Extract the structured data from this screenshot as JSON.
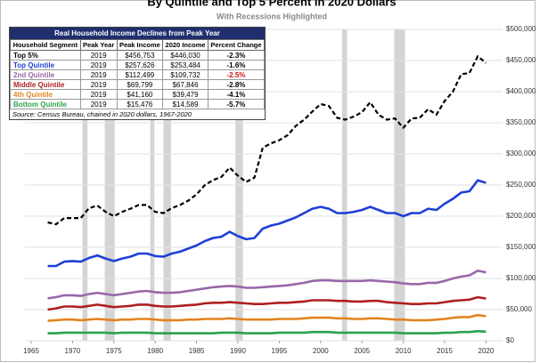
{
  "chart_data": {
    "type": "line",
    "title": "By Quintile and Top 5 Percent in 2020 Dollars",
    "subtitle": "With Recessions Highlighted",
    "x": [
      1967,
      1968,
      1969,
      1970,
      1971,
      1972,
      1973,
      1974,
      1975,
      1976,
      1977,
      1978,
      1979,
      1980,
      1981,
      1982,
      1983,
      1984,
      1985,
      1986,
      1987,
      1988,
      1989,
      1990,
      1991,
      1992,
      1993,
      1994,
      1995,
      1996,
      1997,
      1998,
      1999,
      2000,
      2001,
      2002,
      2003,
      2004,
      2005,
      2006,
      2007,
      2008,
      2009,
      2010,
      2011,
      2012,
      2013,
      2014,
      2015,
      2016,
      2017,
      2018,
      2019,
      2020
    ],
    "series": [
      {
        "name": "Top 5%",
        "color": "#000000",
        "dashed": true,
        "values": [
          190000,
          187000,
          197000,
          197000,
          197000,
          213000,
          217000,
          207000,
          200000,
          207000,
          212000,
          218000,
          218000,
          207000,
          205000,
          213000,
          218000,
          225000,
          235000,
          250000,
          258000,
          263000,
          278000,
          265000,
          255000,
          262000,
          310000,
          317000,
          322000,
          330000,
          345000,
          355000,
          368000,
          380000,
          377000,
          358000,
          355000,
          360000,
          367000,
          383000,
          363000,
          355000,
          357000,
          342000,
          357000,
          358000,
          372000,
          363000,
          385000,
          400000,
          428000,
          430000,
          456753,
          446030
        ]
      },
      {
        "name": "Top Quintile",
        "color": "#1f3fd6",
        "dashed": false,
        "values": [
          120000,
          120000,
          127000,
          128000,
          127000,
          133000,
          137000,
          132000,
          128000,
          132000,
          135000,
          140000,
          140000,
          136000,
          135000,
          140000,
          143000,
          148000,
          153000,
          160000,
          165000,
          167000,
          175000,
          168000,
          163000,
          165000,
          180000,
          185000,
          188000,
          193000,
          198000,
          205000,
          212000,
          215000,
          212000,
          205000,
          205000,
          207000,
          210000,
          215000,
          210000,
          205000,
          205000,
          200000,
          205000,
          205000,
          212000,
          210000,
          220000,
          228000,
          238000,
          240000,
          257626,
          253484
        ]
      },
      {
        "name": "2nd Quintile",
        "color": "#9966aa",
        "dashed": false,
        "values": [
          68000,
          70000,
          73000,
          73000,
          72000,
          75000,
          77000,
          75000,
          73000,
          75000,
          77000,
          79000,
          80000,
          78000,
          77000,
          77000,
          78000,
          80000,
          82000,
          84000,
          86000,
          87000,
          88000,
          87000,
          85000,
          85000,
          86000,
          87000,
          88000,
          89000,
          91000,
          93000,
          96000,
          97000,
          97000,
          96000,
          96000,
          96000,
          96000,
          97000,
          96000,
          95000,
          94000,
          92000,
          91000,
          91000,
          93000,
          93000,
          96000,
          100000,
          103000,
          105000,
          112499,
          109732
        ]
      },
      {
        "name": "Middle Quintile",
        "color": "#b01e1e",
        "dashed": false,
        "values": [
          50000,
          52000,
          55000,
          55000,
          54000,
          56000,
          58000,
          56000,
          54000,
          55000,
          56000,
          58000,
          58000,
          56000,
          55000,
          55000,
          56000,
          57000,
          58000,
          60000,
          61000,
          61000,
          62000,
          61000,
          60000,
          59000,
          59000,
          60000,
          61000,
          61000,
          62000,
          63000,
          65000,
          65000,
          65000,
          64000,
          64000,
          63000,
          63000,
          64000,
          64000,
          62000,
          61000,
          60000,
          59000,
          59000,
          60000,
          60000,
          62000,
          64000,
          65000,
          66000,
          69799,
          67846
        ]
      },
      {
        "name": "4th Quintile",
        "color": "#e2831e",
        "dashed": false,
        "values": [
          32000,
          33000,
          34000,
          34000,
          33000,
          34000,
          35000,
          34000,
          33000,
          34000,
          34000,
          35000,
          35000,
          34000,
          33000,
          33000,
          33000,
          34000,
          34000,
          35000,
          35000,
          35000,
          36000,
          35000,
          34000,
          34000,
          34000,
          34000,
          35000,
          35000,
          35000,
          36000,
          37000,
          37000,
          37000,
          36000,
          36000,
          35000,
          35000,
          36000,
          36000,
          35000,
          34000,
          34000,
          33000,
          33000,
          33000,
          34000,
          35000,
          37000,
          38000,
          38000,
          41160,
          39479
        ]
      },
      {
        "name": "Bottom Quintile",
        "color": "#2aa24e",
        "dashed": false,
        "values": [
          12000,
          12000,
          13000,
          13000,
          13000,
          13000,
          13000,
          13000,
          12000,
          13000,
          13000,
          13000,
          13000,
          12000,
          12000,
          12000,
          12000,
          12000,
          12000,
          12000,
          12000,
          13000,
          13000,
          13000,
          12000,
          12000,
          12000,
          12000,
          13000,
          13000,
          13000,
          13000,
          14000,
          14000,
          14000,
          13000,
          13000,
          13000,
          13000,
          13000,
          13000,
          13000,
          13000,
          12000,
          12000,
          12000,
          12000,
          12000,
          13000,
          13000,
          14000,
          14000,
          15476,
          14589
        ]
      }
    ],
    "recessions": [
      [
        1971.2,
        1971.8
      ],
      [
        1973.9,
        1975.1
      ],
      [
        1979.4,
        1979.9
      ],
      [
        1981.0,
        1981.9
      ],
      [
        1989.7,
        1990.6
      ],
      [
        2002.6,
        2003.2
      ],
      [
        2008.9,
        2010.2
      ]
    ],
    "xlim": [
      1965,
      2022
    ],
    "xticks": [
      1965,
      1970,
      1975,
      1980,
      1985,
      1990,
      1995,
      2000,
      2005,
      2010,
      2015,
      2020
    ],
    "ylim": [
      0,
      500000
    ],
    "yticks": [
      {
        "value": 0,
        "label": "$0"
      },
      {
        "value": 50000,
        "label": "$50,000"
      },
      {
        "value": 100000,
        "label": "$100,000"
      },
      {
        "value": 150000,
        "label": "$150,000"
      },
      {
        "value": 200000,
        "label": "$200,000"
      },
      {
        "value": 250000,
        "label": "$250,000"
      },
      {
        "value": 300000,
        "label": "$300,000"
      },
      {
        "value": 350000,
        "label": "$350,000"
      },
      {
        "value": 400000,
        "label": "$400,000"
      },
      {
        "value": 450000,
        "label": "$450,000"
      },
      {
        "value": 500000,
        "label": "$500,000"
      }
    ],
    "grid": true
  },
  "table": {
    "title": "Real Household Income Declines from Peak Year",
    "columns": [
      "Household Segment",
      "Peak Year",
      "Peak Income",
      "2020 Income",
      "Percent Change"
    ],
    "rows": [
      [
        "Top 5%",
        "2019",
        "$456,753",
        "$446,030",
        "-2.3%"
      ],
      [
        "Top Quintile",
        "2019",
        "$257,626",
        "$253,484",
        "-1.6%"
      ],
      [
        "2nd Quintile",
        "2019",
        "$112,499",
        "$109,732",
        "-2.5%"
      ],
      [
        "Middle Quintile",
        "2019",
        "$69,799",
        "$67,846",
        "-2.8%"
      ],
      [
        "4th Quintile",
        "2019",
        "$41,160",
        "$39,479",
        "-4.1%"
      ],
      [
        "Bottom Quintile",
        "2019",
        "$15,476",
        "$14,589",
        "-5.7%"
      ]
    ],
    "source": "Source: Census Bureau, chained in 2020 dollars, 1967-2020"
  }
}
